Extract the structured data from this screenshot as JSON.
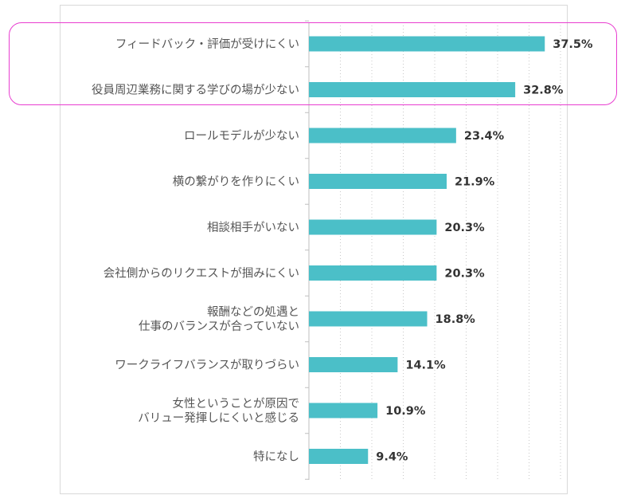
{
  "chart_data": {
    "type": "bar",
    "orientation": "horizontal",
    "categories": [
      [
        "フィードバック・評価が受けにくい"
      ],
      [
        "役員周辺業務に関する学びの場が少ない"
      ],
      [
        "ロールモデルが少ない"
      ],
      [
        "横の繋がりを作りにくい"
      ],
      [
        "相談相手がいない"
      ],
      [
        "会社側からのリクエストが掴みにくい"
      ],
      [
        "報酬などの処遇と",
        "仕事のバランスが合っていない"
      ],
      [
        "ワークライフバランスが取りづらい"
      ],
      [
        "女性ということが原因で",
        "バリュー発揮しにくいと感じる"
      ],
      [
        "特になし"
      ]
    ],
    "values": [
      37.5,
      32.8,
      23.4,
      21.9,
      20.3,
      20.3,
      18.8,
      14.1,
      10.9,
      9.4
    ],
    "value_labels": [
      "37.5%",
      "32.8%",
      "23.4%",
      "21.9%",
      "20.3%",
      "20.3%",
      "18.8%",
      "14.1%",
      "10.9%",
      "9.4%"
    ],
    "xlim": [
      0,
      40
    ],
    "grid": true,
    "bar_color": "#4bbfc8",
    "highlight_color": "#e83ed0",
    "highlighted_categories": [
      0,
      1
    ]
  }
}
